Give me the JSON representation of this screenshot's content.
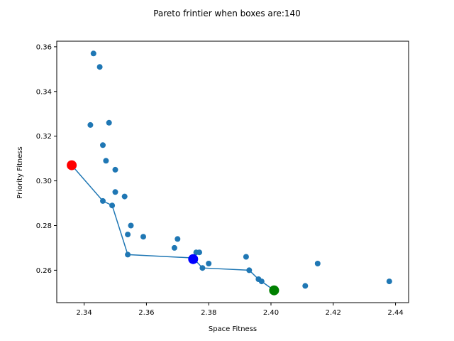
{
  "chart_data": {
    "type": "scatter",
    "title": "Pareto frintier when boxes are:140",
    "xlabel": "Space Fitness",
    "ylabel": "Priority Fitness",
    "xlim": [
      2.3312,
      2.4442
    ],
    "ylim": [
      0.2455,
      0.3625
    ],
    "xticks": [
      2.34,
      2.36,
      2.38,
      2.4,
      2.42,
      2.44
    ],
    "xtick_labels": [
      "2.34",
      "2.36",
      "2.38",
      "2.40",
      "2.42",
      "2.44"
    ],
    "yticks": [
      0.26,
      0.28,
      0.3,
      0.32,
      0.34,
      0.36
    ],
    "ytick_labels": [
      "0.26",
      "0.28",
      "0.30",
      "0.32",
      "0.34",
      "0.36"
    ],
    "grid": false,
    "colors": {
      "points": "#1f77b4",
      "frontier_line": "#1f77b4",
      "highlight_left": "#ff0000",
      "highlight_middle": "#0000ff",
      "highlight_right": "#008000"
    },
    "points": [
      {
        "x": 2.343,
        "y": 0.357
      },
      {
        "x": 2.345,
        "y": 0.351
      },
      {
        "x": 2.342,
        "y": 0.325
      },
      {
        "x": 2.348,
        "y": 0.326
      },
      {
        "x": 2.346,
        "y": 0.316
      },
      {
        "x": 2.347,
        "y": 0.309
      },
      {
        "x": 2.35,
        "y": 0.305
      },
      {
        "x": 2.35,
        "y": 0.295
      },
      {
        "x": 2.353,
        "y": 0.293
      },
      {
        "x": 2.346,
        "y": 0.291
      },
      {
        "x": 2.349,
        "y": 0.289
      },
      {
        "x": 2.355,
        "y": 0.28
      },
      {
        "x": 2.354,
        "y": 0.276
      },
      {
        "x": 2.359,
        "y": 0.275
      },
      {
        "x": 2.37,
        "y": 0.274
      },
      {
        "x": 2.369,
        "y": 0.27
      },
      {
        "x": 2.354,
        "y": 0.267
      },
      {
        "x": 2.376,
        "y": 0.268
      },
      {
        "x": 2.377,
        "y": 0.268
      },
      {
        "x": 2.392,
        "y": 0.266
      },
      {
        "x": 2.38,
        "y": 0.263
      },
      {
        "x": 2.378,
        "y": 0.261
      },
      {
        "x": 2.393,
        "y": 0.26
      },
      {
        "x": 2.396,
        "y": 0.256
      },
      {
        "x": 2.397,
        "y": 0.255
      },
      {
        "x": 2.415,
        "y": 0.263
      },
      {
        "x": 2.411,
        "y": 0.253
      },
      {
        "x": 2.438,
        "y": 0.255
      }
    ],
    "frontier": [
      {
        "x": 2.336,
        "y": 0.307
      },
      {
        "x": 2.346,
        "y": 0.291
      },
      {
        "x": 2.349,
        "y": 0.289
      },
      {
        "x": 2.354,
        "y": 0.267
      },
      {
        "x": 2.375,
        "y": 0.2655
      },
      {
        "x": 2.378,
        "y": 0.261
      },
      {
        "x": 2.393,
        "y": 0.26
      },
      {
        "x": 2.396,
        "y": 0.256
      },
      {
        "x": 2.401,
        "y": 0.251
      }
    ],
    "highlights": [
      {
        "x": 2.336,
        "y": 0.307,
        "color": "#ff0000"
      },
      {
        "x": 2.375,
        "y": 0.265,
        "color": "#0000ff"
      },
      {
        "x": 2.401,
        "y": 0.251,
        "color": "#008000"
      }
    ]
  }
}
